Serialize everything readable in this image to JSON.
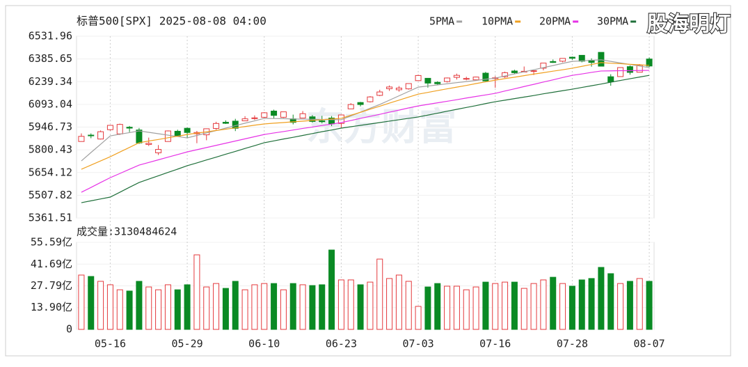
{
  "chart_data": [
    {
      "type": "candlestick",
      "title": "标普500[SPX] 2025-08-08 04:00",
      "ylim": [
        5361.51,
        6531.96
      ],
      "yticks": [
        6531.96,
        6385.65,
        6239.34,
        6093.04,
        5946.73,
        5800.43,
        5654.12,
        5507.82,
        5361.51
      ],
      "up_color": "#e4393c",
      "down_color": "#0a8a24",
      "grid": true,
      "ohlc": [
        [
          5854,
          5906,
          5853,
          5887
        ],
        [
          5895,
          5906,
          5875,
          5893
        ],
        [
          5870,
          5925,
          5867,
          5917
        ],
        [
          5930,
          5959,
          5924,
          5958
        ],
        [
          5903,
          5969,
          5896,
          5964
        ],
        [
          5946,
          5954,
          5915,
          5940
        ],
        [
          5928,
          5941,
          5838,
          5845
        ],
        [
          5835,
          5879,
          5825,
          5842
        ],
        [
          5781,
          5831,
          5767,
          5803
        ],
        [
          5854,
          5925,
          5854,
          5922
        ],
        [
          5920,
          5930,
          5886,
          5889
        ],
        [
          5939,
          5944,
          5876,
          5912
        ],
        [
          5904,
          5922,
          5843,
          5912
        ],
        [
          5897,
          5938,
          5862,
          5936
        ],
        [
          5938,
          5981,
          5929,
          5970
        ],
        [
          5978,
          5990,
          5967,
          5971
        ],
        [
          5985,
          6000,
          5921,
          5939
        ],
        [
          5987,
          6017,
          5987,
          6000
        ],
        [
          6005,
          6022,
          5993,
          6006
        ],
        [
          6010,
          6043,
          6006,
          6039
        ],
        [
          6050,
          6059,
          6003,
          6022
        ],
        [
          6010,
          6046,
          6006,
          6045
        ],
        [
          6000,
          6027,
          5964,
          5977
        ],
        [
          6005,
          6050,
          6005,
          6033
        ],
        [
          6013,
          6024,
          5975,
          5983
        ],
        [
          5987,
          6019,
          5971,
          5981
        ],
        [
          6005,
          6018,
          5953,
          5968
        ],
        [
          5970,
          6028,
          5943,
          6025
        ],
        [
          6064,
          6101,
          6064,
          6092
        ],
        [
          6105,
          6109,
          6080,
          6092
        ],
        [
          6110,
          6146,
          6105,
          6141
        ],
        [
          6151,
          6187,
          6146,
          6173
        ],
        [
          6194,
          6215,
          6180,
          6205
        ],
        [
          6187,
          6211,
          6175,
          6198
        ],
        [
          6193,
          6227,
          6188,
          6227
        ],
        [
          6246,
          6284,
          6244,
          6279
        ],
        [
          6261,
          6263,
          6201,
          6230
        ],
        [
          6235,
          6242,
          6218,
          6226
        ],
        [
          6240,
          6266,
          6234,
          6263
        ],
        [
          6267,
          6291,
          6253,
          6280
        ],
        [
          6255,
          6271,
          6248,
          6260
        ],
        [
          6251,
          6272,
          6245,
          6269
        ],
        [
          6294,
          6302,
          6242,
          6244
        ],
        [
          6259,
          6275,
          6200,
          6264
        ],
        [
          6271,
          6304,
          6264,
          6297
        ],
        [
          6308,
          6316,
          6289,
          6297
        ],
        [
          6304,
          6337,
          6302,
          6306
        ],
        [
          6307,
          6310,
          6282,
          6310
        ],
        [
          6326,
          6359,
          6312,
          6359
        ],
        [
          6369,
          6382,
          6360,
          6363
        ],
        [
          6371,
          6390,
          6364,
          6389
        ],
        [
          6397,
          6401,
          6379,
          6390
        ],
        [
          6409,
          6410,
          6364,
          6371
        ],
        [
          6377,
          6389,
          6336,
          6363
        ],
        [
          6428,
          6428,
          6337,
          6339
        ],
        [
          6271,
          6287,
          6213,
          6238
        ],
        [
          6272,
          6330,
          6272,
          6330
        ],
        [
          6336,
          6344,
          6284,
          6299
        ],
        [
          6300,
          6352,
          6300,
          6345
        ],
        [
          6385,
          6395,
          6333,
          6340
        ]
      ],
      "series": [
        {
          "name": "5PMA",
          "color": "#a0a0a0",
          "values": [
            5729,
            5783,
            5836,
            5890,
            5901,
            5911,
            5922,
            5913,
            5904,
            5895,
            5886,
            5877,
            5893,
            5909,
            5924,
            5940,
            5956,
            5972,
            5987,
            6003,
            6002,
            6001,
            5999,
            5998,
            5997,
            5996,
            5995,
            5994,
            6019,
            6043,
            6068,
            6092,
            6120,
            6148,
            6176,
            6204,
            6211,
            6218,
            6226,
            6233,
            6240,
            6247,
            6255,
            6262,
            6276,
            6289,
            6303,
            6316,
            6330,
            6343,
            6357,
            6370,
            6373,
            6377,
            6380,
            6370,
            6360,
            6350,
            6340,
            6330
          ]
        },
        {
          "name": "10PMA",
          "color": "#f0a020",
          "values": [
            5675,
            5702,
            5729,
            5756,
            5786,
            5816,
            5846,
            5857,
            5867,
            5878,
            5888,
            5899,
            5908,
            5916,
            5925,
            5933,
            5942,
            5950,
            5959,
            5967,
            5972,
            5976,
            5981,
            5985,
            5990,
            5994,
            5999,
            6003,
            6023,
            6042,
            6062,
            6081,
            6101,
            6120,
            6140,
            6159,
            6170,
            6182,
            6193,
            6204,
            6215,
            6227,
            6238,
            6249,
            6259,
            6268,
            6278,
            6288,
            6297,
            6307,
            6316,
            6326,
            6338,
            6350,
            6362,
            6358,
            6355,
            6351,
            6348,
            6344
          ]
        },
        {
          "name": "20PMA",
          "color": "#e632e6",
          "values": [
            5527,
            5558,
            5590,
            5621,
            5648,
            5675,
            5702,
            5719,
            5736,
            5753,
            5770,
            5787,
            5801,
            5815,
            5829,
            5843,
            5857,
            5871,
            5885,
            5899,
            5909,
            5918,
            5928,
            5938,
            5947,
            5957,
            5966,
            5976,
            5989,
            6003,
            6016,
            6029,
            6043,
            6056,
            6070,
            6083,
            6093,
            6103,
            6113,
            6123,
            6134,
            6144,
            6154,
            6164,
            6179,
            6193,
            6208,
            6222,
            6237,
            6251,
            6266,
            6280,
            6289,
            6299,
            6308,
            6309,
            6310,
            6310,
            6311,
            6312
          ]
        },
        {
          "name": "30PMA",
          "color": "#1f6f3a",
          "values": [
            5460,
            5472,
            5484,
            5496,
            5527,
            5559,
            5590,
            5612,
            5633,
            5655,
            5676,
            5698,
            5716,
            5735,
            5753,
            5772,
            5790,
            5809,
            5827,
            5846,
            5858,
            5870,
            5881,
            5893,
            5905,
            5917,
            5928,
            5940,
            5949,
            5958,
            5967,
            5976,
            5985,
            5994,
            6003,
            6012,
            6024,
            6036,
            6049,
            6061,
            6073,
            6085,
            6098,
            6110,
            6120,
            6130,
            6140,
            6150,
            6161,
            6171,
            6181,
            6191,
            6202,
            6213,
            6224,
            6236,
            6247,
            6258,
            6269,
            6280
          ]
        }
      ]
    },
    {
      "type": "bar",
      "title": "成交量:3130484624",
      "ylim": [
        0,
        55.59
      ],
      "yticks": [
        {
          "value": 55.59,
          "label": "55.59亿"
        },
        {
          "value": 41.69,
          "label": "41.69亿"
        },
        {
          "value": 27.79,
          "label": "27.79亿"
        },
        {
          "value": 13.9,
          "label": "13.90亿"
        },
        0
      ],
      "categories": [
        null,
        null,
        null,
        "05-16",
        null,
        null,
        null,
        null,
        null,
        null,
        null,
        "05-29",
        null,
        null,
        null,
        null,
        null,
        null,
        null,
        "06-10",
        null,
        null,
        null,
        null,
        null,
        null,
        null,
        "06-23",
        null,
        null,
        null,
        null,
        null,
        null,
        null,
        "07-03",
        null,
        null,
        null,
        null,
        null,
        null,
        null,
        "07-16",
        null,
        null,
        null,
        null,
        null,
        null,
        null,
        "07-28",
        null,
        null,
        null,
        null,
        null,
        null,
        null,
        "08-07"
      ],
      "values": [
        34.7,
        33.8,
        30.7,
        28.5,
        25.3,
        24.5,
        30.7,
        27.1,
        25.3,
        28.5,
        25.3,
        28.5,
        47.6,
        27.1,
        29.3,
        26.2,
        30.7,
        25.3,
        28.5,
        29.3,
        29.3,
        25.3,
        29.3,
        28.5,
        28.0,
        28.5,
        50.7,
        31.6,
        31.6,
        28.5,
        30.2,
        44.9,
        32.5,
        34.7,
        30.7,
        14.7,
        27.1,
        29.3,
        27.6,
        27.6,
        25.3,
        27.1,
        30.2,
        29.3,
        30.2,
        30.2,
        26.2,
        29.3,
        31.6,
        33.3,
        29.3,
        27.6,
        31.6,
        32.5,
        39.6,
        35.6,
        29.3,
        30.7,
        32.5,
        30.7
      ]
    }
  ],
  "watermark": "东方财富",
  "corner_text": "股海明灯"
}
